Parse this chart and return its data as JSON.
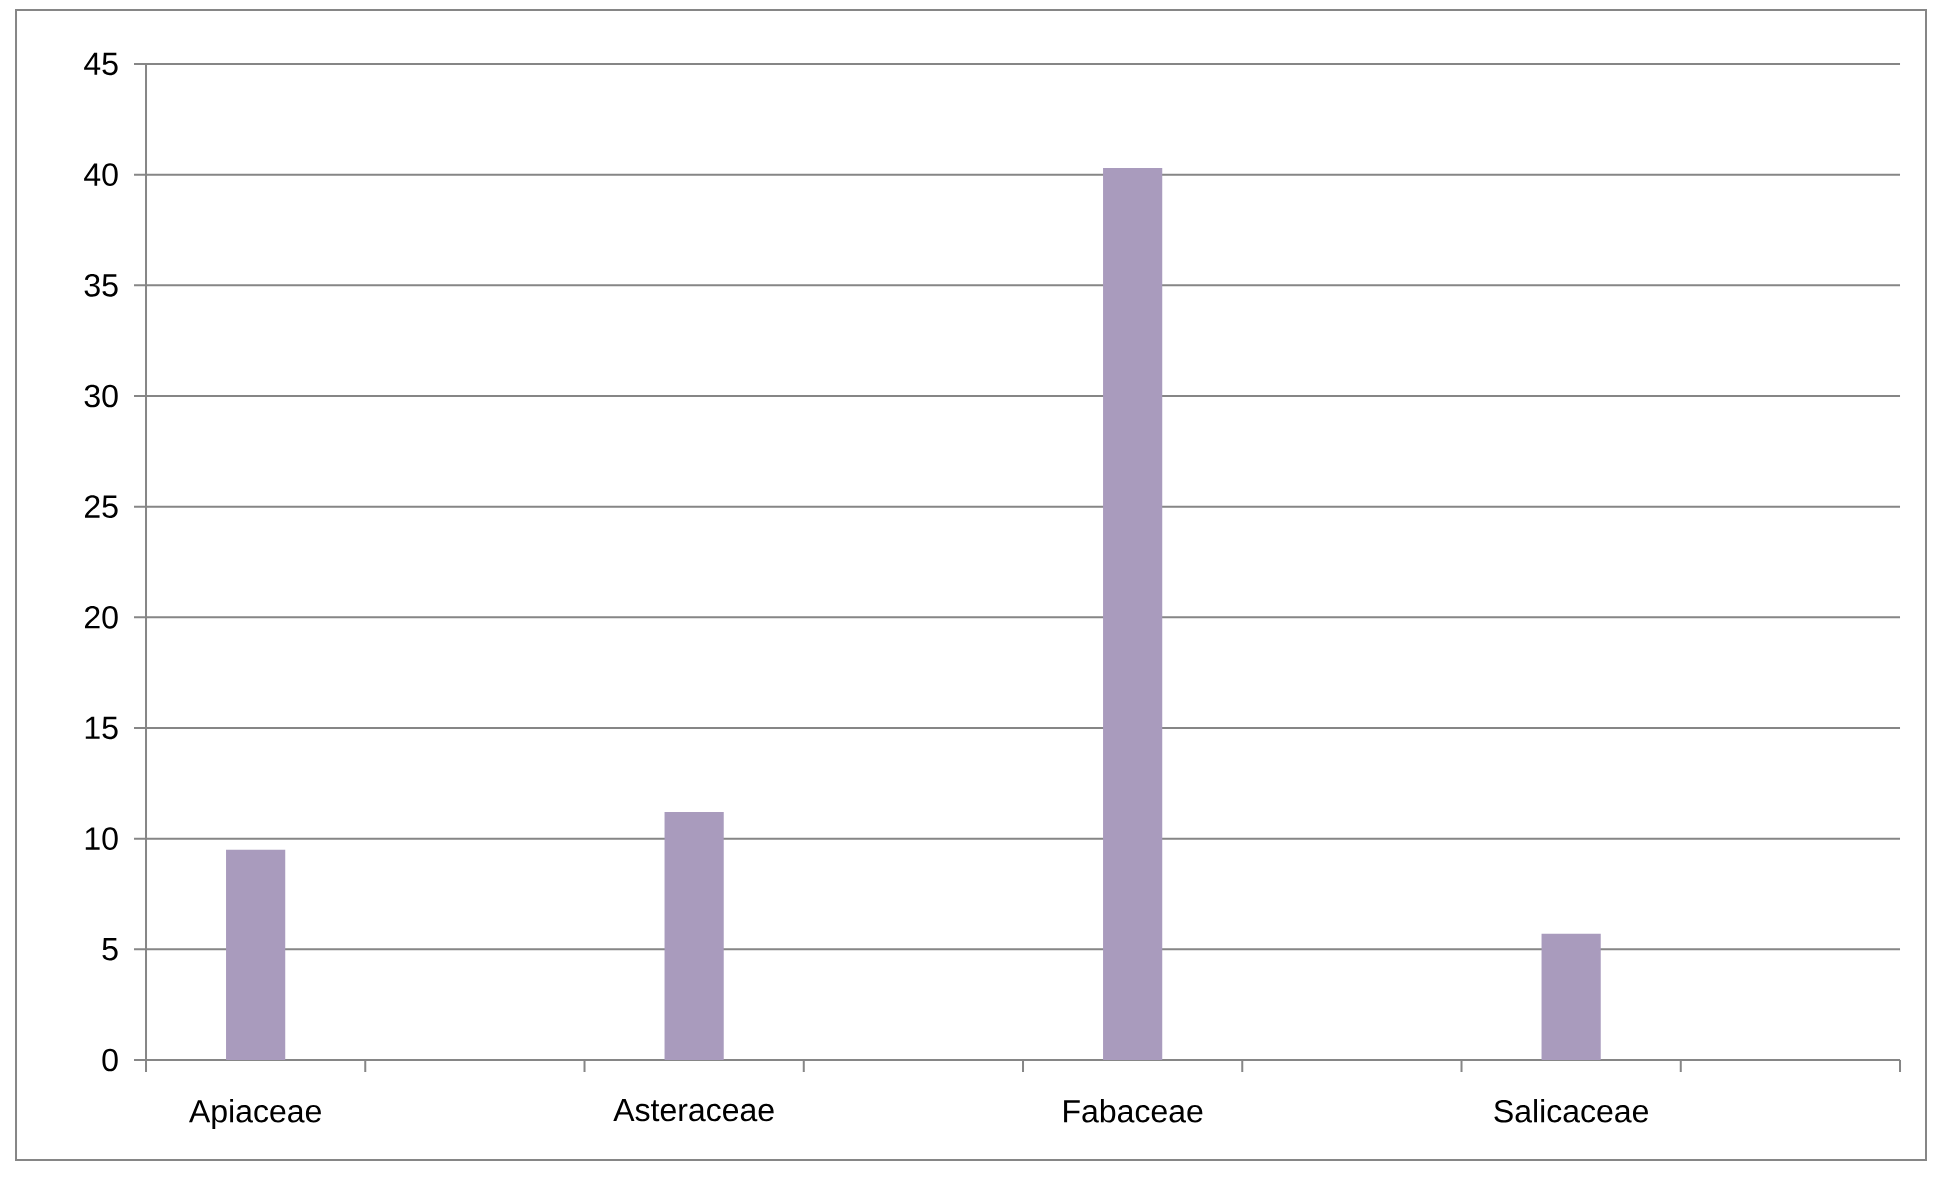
{
  "chart_data": {
    "type": "bar",
    "categories": [
      "Apiaceae",
      null,
      "Asteraceae",
      null,
      "Fabaceae",
      null,
      "Salicaceae",
      null
    ],
    "values": [
      9.5,
      null,
      11.2,
      null,
      40.3,
      null,
      5.7,
      null
    ],
    "color": "#a99bbd",
    "ylim": [
      0,
      45
    ],
    "yticks": [
      0,
      5,
      10,
      15,
      20,
      25,
      30,
      35,
      40,
      45
    ],
    "grid": "y"
  }
}
